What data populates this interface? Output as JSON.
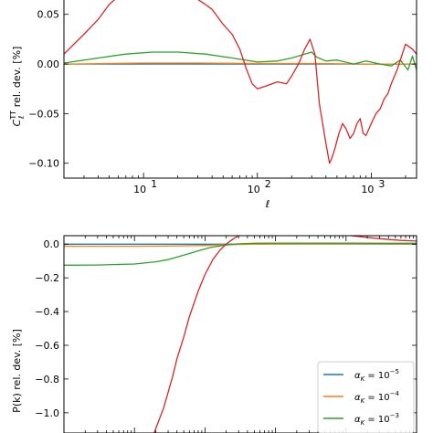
{
  "chart_data": [
    {
      "type": "line",
      "xlabel": "ℓ",
      "ylabel": "C_ℓ^TT rel. dev. [%]",
      "xscale": "log",
      "xlim": [
        2,
        2500
      ],
      "ylim": [
        -0.115,
        0.07
      ],
      "yticks": [
        0.05,
        0.0,
        -0.05,
        -0.1
      ],
      "ytick_labels": [
        "0.05",
        "0.00",
        "−0.05",
        "−0.10"
      ],
      "xticks": [
        10,
        100,
        1000
      ],
      "xtick_labels": [
        "10",
        "10",
        "10"
      ],
      "xtick_exponents": [
        "1",
        "2",
        "3"
      ],
      "series": [
        {
          "color": "#1f77b4",
          "x": [
            2,
            5,
            10,
            30,
            100,
            300,
            1000,
            2500
          ],
          "y": [
            0.0,
            0.0,
            0.0,
            0.0,
            0.0,
            0.0,
            0.0,
            0.0
          ]
        },
        {
          "color": "#ff7f0e",
          "x": [
            2,
            5,
            10,
            30,
            100,
            300,
            1000,
            2500
          ],
          "y": [
            0.0,
            0.0005,
            0.001,
            0.001,
            0.0005,
            0.0005,
            0.0,
            0.0
          ]
        },
        {
          "color": "#2ca02c",
          "x": [
            2,
            4,
            7,
            12,
            20,
            35,
            60,
            100,
            150,
            200,
            260,
            300,
            330,
            400,
            500,
            700,
            900,
            1200,
            1500,
            1800,
            2100,
            2300,
            2500
          ],
          "y": [
            0.001,
            0.006,
            0.01,
            0.012,
            0.012,
            0.01,
            0.006,
            0.002,
            0.003,
            0.006,
            0.01,
            0.012,
            0.007,
            0.003,
            0.004,
            0.0,
            0.003,
            0.0,
            -0.002,
            0.004,
            -0.006,
            0.008,
            -0.006
          ]
        },
        {
          "color": "#d62728",
          "x": [
            2,
            3,
            4,
            5,
            7,
            10,
            15,
            20,
            25,
            30,
            35,
            40,
            50,
            60,
            70,
            80,
            90,
            100,
            120,
            150,
            180,
            200,
            230,
            260,
            290,
            320,
            350,
            400,
            430,
            450,
            480,
            520,
            560,
            600,
            650,
            700,
            750,
            800,
            850,
            900,
            1000,
            1100,
            1200,
            1300,
            1400,
            1500,
            1700,
            2000,
            2300,
            2500
          ],
          "y": [
            0.01,
            0.03,
            0.045,
            0.06,
            0.075,
            0.085,
            0.09,
            0.085,
            0.07,
            0.065,
            0.06,
            0.055,
            0.04,
            0.03,
            0.015,
            -0.005,
            -0.02,
            -0.025,
            -0.022,
            -0.018,
            -0.02,
            -0.012,
            0.0,
            0.015,
            0.025,
            0.01,
            -0.04,
            -0.08,
            -0.1,
            -0.095,
            -0.085,
            -0.07,
            -0.06,
            -0.065,
            -0.075,
            -0.07,
            -0.06,
            -0.055,
            -0.07,
            -0.072,
            -0.06,
            -0.05,
            -0.045,
            -0.035,
            -0.03,
            -0.02,
            -0.005,
            0.02,
            0.015,
            0.01
          ]
        }
      ]
    },
    {
      "type": "line",
      "xlabel": "",
      "ylabel": "P(k) rel. dev. [%]",
      "xscale": "log",
      "xlim": [
        0.0001,
        10
      ],
      "ylim": [
        -1.12,
        0.05
      ],
      "yticks": [
        0.0,
        -0.2,
        -0.4,
        -0.6,
        -0.8,
        -1.0
      ],
      "ytick_labels": [
        "0.0",
        "−0.2",
        "−0.4",
        "−0.6",
        "−0.8",
        "−1.0"
      ],
      "legend": {
        "loc": "lower right",
        "entries": [
          {
            "label": "α_K = 10^−5",
            "color": "#1f77b4"
          },
          {
            "label": "α_K = 10^−4",
            "color": "#ff7f0e"
          },
          {
            "label": "α_K = 10^−3",
            "color": "#2ca02c"
          }
        ]
      },
      "series": [
        {
          "color": "#1f77b4",
          "x": [
            0.0001,
            0.001,
            0.01,
            0.1,
            1,
            10
          ],
          "y": [
            -0.0005,
            -0.0004,
            -0.0002,
            0.0005,
            0.0005,
            0.0004
          ]
        },
        {
          "color": "#ff7f0e",
          "x": [
            0.0001,
            0.001,
            0.003,
            0.01,
            0.03,
            0.1,
            1,
            10
          ],
          "y": [
            -0.013,
            -0.013,
            -0.012,
            -0.008,
            -0.002,
            0.001,
            0.002,
            0.0015
          ]
        },
        {
          "color": "#2ca02c",
          "x": [
            0.0001,
            0.0003,
            0.001,
            0.002,
            0.003,
            0.005,
            0.008,
            0.012,
            0.02,
            0.03,
            0.05,
            0.1,
            0.3,
            1,
            3,
            10
          ],
          "y": [
            -0.125,
            -0.124,
            -0.118,
            -0.105,
            -0.092,
            -0.065,
            -0.04,
            -0.02,
            -0.005,
            0.002,
            0.005,
            0.006,
            0.006,
            0.006,
            0.005,
            0.005
          ]
        },
        {
          "color": "#d62728",
          "x": [
            0.0019,
            0.0022,
            0.0026,
            0.003,
            0.0035,
            0.004,
            0.005,
            0.006,
            0.008,
            0.01,
            0.013,
            0.016,
            0.02,
            0.025,
            0.03,
            0.04,
            0.05,
            0.07,
            0.1,
            0.2,
            0.4,
            0.8,
            1.5,
            3,
            6,
            10
          ],
          "y": [
            -1.12,
            -1.05,
            -0.97,
            -0.88,
            -0.78,
            -0.68,
            -0.55,
            -0.43,
            -0.28,
            -0.18,
            -0.09,
            -0.04,
            0.0,
            0.03,
            0.05,
            0.065,
            0.072,
            0.075,
            0.075,
            0.072,
            0.065,
            0.058,
            0.045,
            0.032,
            0.022,
            0.018
          ]
        }
      ]
    }
  ]
}
